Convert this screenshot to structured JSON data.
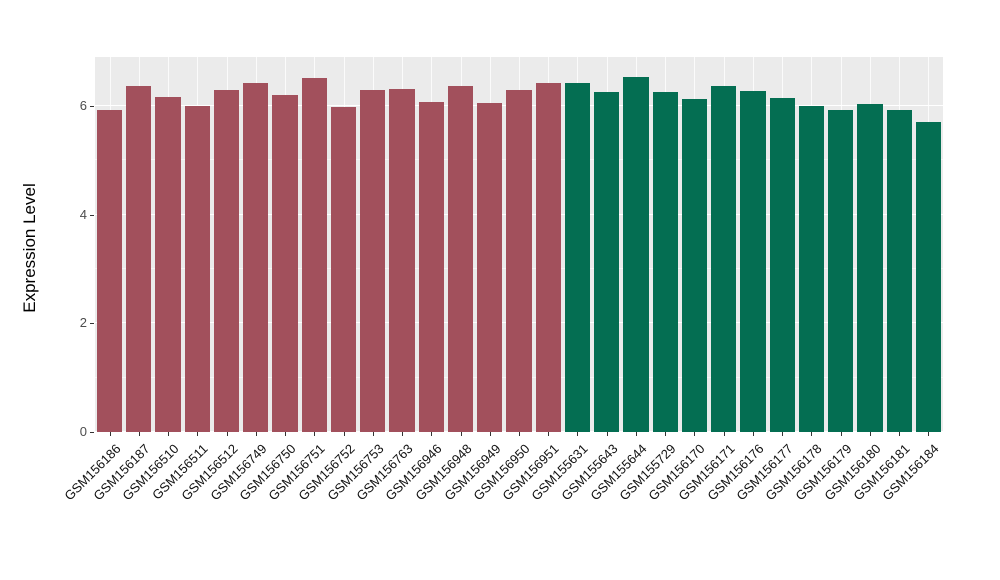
{
  "figure": {
    "ylabel": "Expression Level"
  },
  "chart_data": {
    "type": "bar",
    "title": "",
    "xlabel": "",
    "ylabel": "Expression Level",
    "ylim": [
      0,
      6.9
    ],
    "yticks": [
      0,
      2,
      4,
      6
    ],
    "yticks_minor": [
      1,
      3,
      5
    ],
    "grid": true,
    "legend": "none",
    "panel_bg": "#EBEBEB",
    "grid_color": "#FFFFFF",
    "categories": [
      "GSM156186",
      "GSM156187",
      "GSM156510",
      "GSM156511",
      "GSM156512",
      "GSM156749",
      "GSM156750",
      "GSM156751",
      "GSM156752",
      "GSM156753",
      "GSM156763",
      "GSM156946",
      "GSM156948",
      "GSM156949",
      "GSM156950",
      "GSM156951",
      "GSM155631",
      "GSM155643",
      "GSM155644",
      "GSM155729",
      "GSM156170",
      "GSM156171",
      "GSM156176",
      "GSM156177",
      "GSM156178",
      "GSM156179",
      "GSM156180",
      "GSM156181",
      "GSM156184"
    ],
    "values": [
      5.92,
      6.37,
      6.17,
      6.0,
      6.3,
      6.43,
      6.2,
      6.52,
      5.98,
      6.3,
      6.32,
      6.07,
      6.37,
      6.05,
      6.3,
      6.42,
      6.42,
      6.25,
      6.53,
      6.25,
      6.13,
      6.37,
      6.27,
      6.15,
      6.0,
      5.93,
      6.03,
      5.93,
      5.7
    ],
    "groups": [
      "group1",
      "group1",
      "group1",
      "group1",
      "group1",
      "group1",
      "group1",
      "group1",
      "group1",
      "group1",
      "group1",
      "group1",
      "group1",
      "group1",
      "group1",
      "group1",
      "group2",
      "group2",
      "group2",
      "group2",
      "group2",
      "group2",
      "group2",
      "group2",
      "group2",
      "group2",
      "group2",
      "group2",
      "group2"
    ],
    "group_colors": {
      "group1": "#A2505C",
      "group2": "#046E52"
    }
  }
}
